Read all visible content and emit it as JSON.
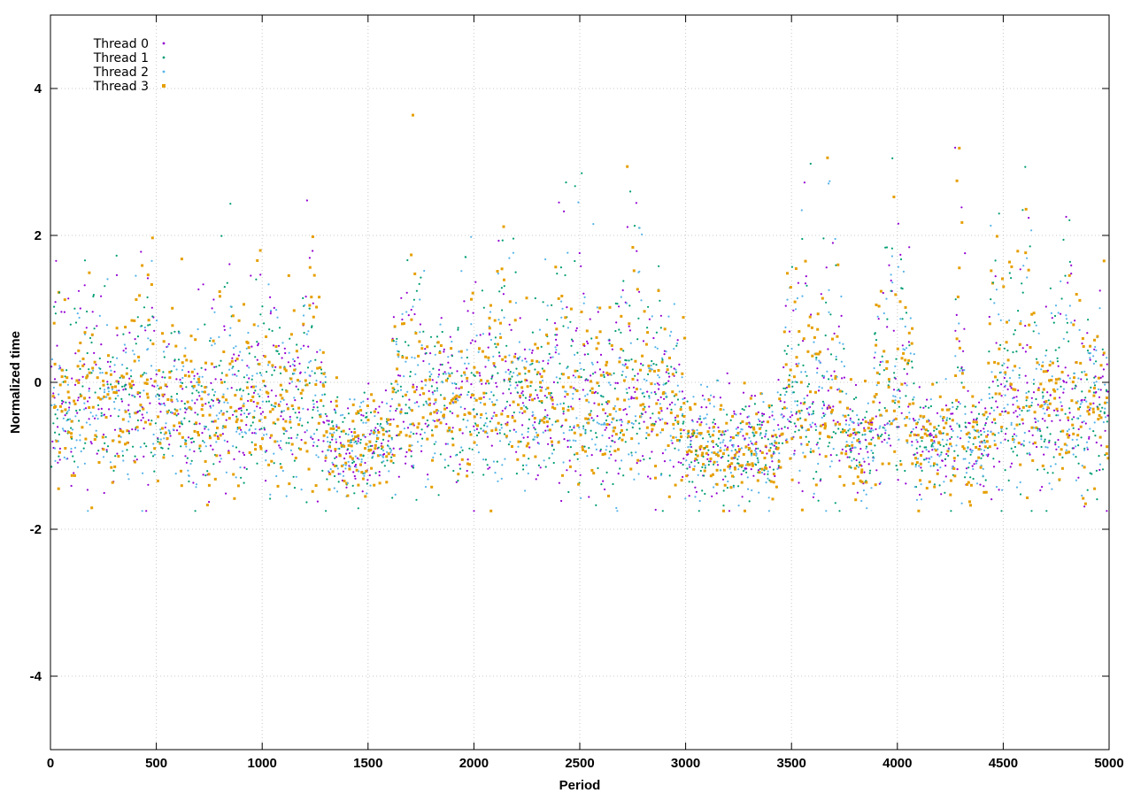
{
  "chart_data": {
    "type": "scatter",
    "title": "",
    "xlabel": "Period",
    "ylabel": "Normalized time",
    "xlim": [
      0,
      5000
    ],
    "ylim": [
      -5,
      5
    ],
    "xticks": [
      0,
      500,
      1000,
      1500,
      2000,
      2500,
      3000,
      3500,
      4000,
      4500,
      5000
    ],
    "yticks": [
      -4,
      -2,
      0,
      2,
      4
    ],
    "grid": true,
    "legend_position": "top-left",
    "series": [
      {
        "name": "Thread 0",
        "color": "#9400d3",
        "marker": "dot"
      },
      {
        "name": "Thread 1",
        "color": "#009e73",
        "marker": "dot"
      },
      {
        "name": "Thread 2",
        "color": "#56b4e9",
        "marker": "dot"
      },
      {
        "name": "Thread 3",
        "color": "#e69f00",
        "marker": "square"
      }
    ],
    "x_step": 10,
    "waves": [
      {
        "center": 30,
        "width": 40,
        "amp": 1.4
      },
      {
        "center": 180,
        "width": 70,
        "amp": 1.1
      },
      {
        "center": 450,
        "width": 60,
        "amp": 1.3
      },
      {
        "center": 580,
        "width": 45,
        "amp": 0.6
      },
      {
        "center": 820,
        "width": 70,
        "amp": 1.6
      },
      {
        "center": 1000,
        "width": 60,
        "amp": 1.2
      },
      {
        "center": 1230,
        "width": 40,
        "amp": 1.9
      },
      {
        "center": 1700,
        "width": 60,
        "amp": 1.7
      },
      {
        "center": 1960,
        "width": 40,
        "amp": 2.4
      },
      {
        "center": 2160,
        "width": 60,
        "amp": 2.0
      },
      {
        "center": 2450,
        "width": 80,
        "amp": 2.2
      },
      {
        "center": 2740,
        "width": 60,
        "amp": 2.3
      },
      {
        "center": 2880,
        "width": 40,
        "amp": 1.3
      },
      {
        "center": 3530,
        "width": 70,
        "amp": 1.6
      },
      {
        "center": 3680,
        "width": 40,
        "amp": 2.8
      },
      {
        "center": 3980,
        "width": 70,
        "amp": 2.4
      },
      {
        "center": 4280,
        "width": 40,
        "amp": 2.8
      },
      {
        "center": 4480,
        "width": 70,
        "amp": 1.6
      },
      {
        "center": 4600,
        "width": 40,
        "amp": 3.0
      },
      {
        "center": 4800,
        "width": 70,
        "amp": 1.8
      }
    ],
    "dense_low_segments": [
      {
        "from": 1300,
        "to": 1600
      },
      {
        "from": 3000,
        "to": 3450
      },
      {
        "from": 3750,
        "to": 3880
      },
      {
        "from": 4080,
        "to": 4260
      },
      {
        "from": 4320,
        "to": 4420
      }
    ]
  }
}
